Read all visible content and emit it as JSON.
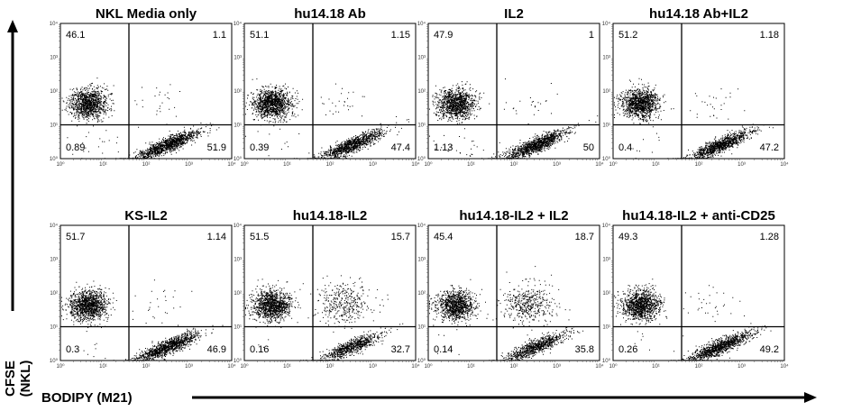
{
  "chart_data": {
    "type": "scatter",
    "x_axis_label": "BODIPY (M21)",
    "y_axis_label_line1": "CFSE",
    "y_axis_label_line2": "(NKL)",
    "xscale": "log",
    "yscale": "log",
    "xlim": [
      1,
      10000
    ],
    "ylim": [
      1,
      10000
    ],
    "tick_labels": [
      "10⁰",
      "10¹",
      "10²",
      "10³",
      "10⁴"
    ],
    "panels": [
      {
        "title": "NKL Media only",
        "quadrants": {
          "ul": "46.1",
          "ur": "1.1",
          "ll": "0.89",
          "lr": "51.9"
        }
      },
      {
        "title": "hu14.18 Ab",
        "quadrants": {
          "ul": "51.1",
          "ur": "1.15",
          "ll": "0.39",
          "lr": "47.4"
        }
      },
      {
        "title": "IL2",
        "quadrants": {
          "ul": "47.9",
          "ur": "1",
          "ll": "1.13",
          "lr": "50"
        }
      },
      {
        "title": "hu14.18 Ab+IL2",
        "quadrants": {
          "ul": "51.2",
          "ur": "1.18",
          "ll": "0.4",
          "lr": "47.2"
        }
      },
      {
        "title": "KS-IL2",
        "quadrants": {
          "ul": "51.7",
          "ur": "1.14",
          "ll": "0.3",
          "lr": "46.9"
        }
      },
      {
        "title": "hu14.18-IL2",
        "quadrants": {
          "ul": "51.5",
          "ur": "15.7",
          "ll": "0.16",
          "lr": "32.7"
        }
      },
      {
        "title": "hu14.18-IL2 + IL2",
        "quadrants": {
          "ul": "45.4",
          "ur": "18.7",
          "ll": "0.14",
          "lr": "35.8"
        }
      },
      {
        "title": "hu14.18-IL2 + anti-CD25",
        "quadrants": {
          "ul": "49.3",
          "ur": "1.28",
          "ll": "0.26",
          "lr": "49.2"
        }
      }
    ]
  }
}
